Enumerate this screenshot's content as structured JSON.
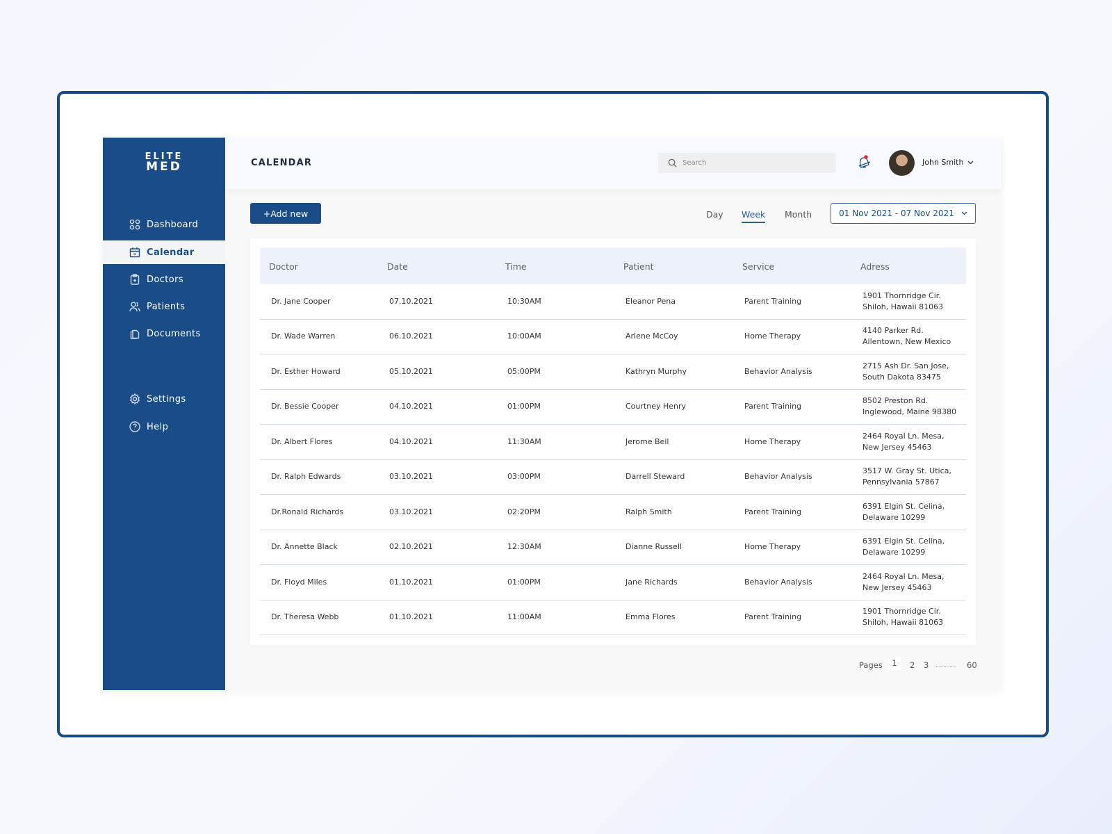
{
  "logo": {
    "line1": "ELITE",
    "line2": "MED"
  },
  "sidebar": {
    "items": [
      {
        "label": "Dashboard",
        "icon": "grid-icon"
      },
      {
        "label": "Calendar",
        "icon": "calendar-icon",
        "active": true
      },
      {
        "label": "Doctors",
        "icon": "clipboard-icon"
      },
      {
        "label": "Patients",
        "icon": "users-icon"
      },
      {
        "label": "Documents",
        "icon": "documents-icon"
      },
      {
        "label": "Settings",
        "icon": "gear-icon"
      },
      {
        "label": "Help",
        "icon": "help-icon"
      }
    ]
  },
  "header": {
    "title": "CALENDAR",
    "search_placeholder": "Search",
    "user_name": "John Smith"
  },
  "toolbar": {
    "add_label": "+Add new",
    "tabs": [
      "Day",
      "Week",
      "Month"
    ],
    "active_tab": "Week",
    "date_range": "01 Nov 2021 - 07 Nov 2021"
  },
  "table": {
    "columns": [
      "Doctor",
      "Date",
      "Time",
      "Patient",
      "Service",
      "Adress"
    ],
    "rows": [
      [
        "Dr. Jane Cooper",
        "07.10.2021",
        "10:30AM",
        "Eleanor Pena",
        "Parent Training",
        "1901 Thornridge Cir.",
        "Shiloh, Hawaii 81063"
      ],
      [
        "Dr. Wade Warren",
        "06.10.2021",
        "10:00AM",
        "Arlene McCoy",
        "Home Therapy",
        "4140 Parker Rd.",
        "Allentown, New Mexico"
      ],
      [
        "Dr. Esther Howard",
        "05.10.2021",
        "05:00PM",
        "Kathryn Murphy",
        "Behavior Analysis",
        "2715 Ash Dr. San Jose,",
        "South Dakota 83475"
      ],
      [
        "Dr. Bessie Cooper",
        "04.10.2021",
        "01:00PM",
        "Courtney Henry",
        "Parent Training",
        "8502 Preston Rd.",
        "Inglewood, Maine 98380"
      ],
      [
        "Dr. Albert Flores",
        "04.10.2021",
        "11:30AM",
        "Jerome Bell",
        "Home Therapy",
        "2464 Royal Ln. Mesa,",
        "New Jersey 45463"
      ],
      [
        "Dr. Ralph Edwards",
        "03.10.2021",
        "03:00PM",
        "Darrell Steward",
        "Behavior Analysis",
        "3517 W. Gray St. Utica,",
        "Pennsylvania 57867"
      ],
      [
        "Dr.Ronald Richards",
        "03.10.2021",
        "02:20PM",
        "Ralph Smith",
        "Parent Training",
        "6391 Elgin St. Celina,",
        "Delaware 10299"
      ],
      [
        "Dr. Annette Black",
        "02.10.2021",
        "12:30AM",
        "Dianne Russell",
        "Home Therapy",
        "6391 Elgin St. Celina,",
        "Delaware 10299"
      ],
      [
        "Dr. Floyd Miles",
        "01.10.2021",
        "01:00PM",
        "Jane Richards",
        "Behavior Analysis",
        "2464 Royal Ln. Mesa,",
        "New Jersey 45463"
      ],
      [
        "Dr. Theresa Webb",
        "01.10.2021",
        "11:00AM",
        "Emma Flores",
        "Parent Training",
        "1901 Thornridge Cir.",
        "Shiloh, Hawaii 81063"
      ]
    ]
  },
  "pagination": {
    "label": "Pages",
    "pages": [
      "1",
      "2",
      "3"
    ],
    "ellipsis": "..............",
    "last": "60",
    "current": "1"
  },
  "colors": {
    "primary": "#1a4c88",
    "notification": "#e8262b"
  }
}
